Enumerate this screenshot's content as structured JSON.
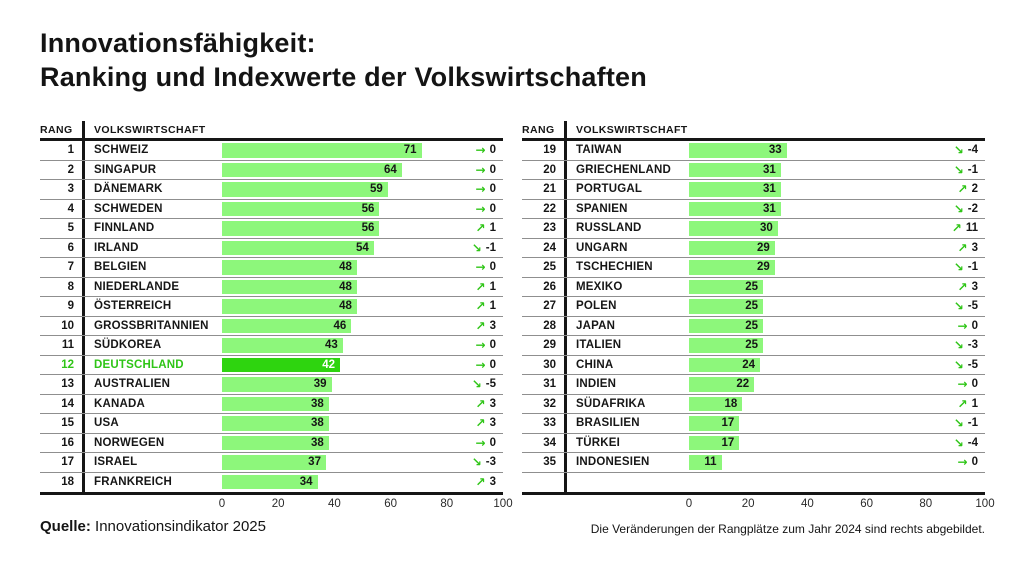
{
  "title": {
    "line1": "Innovationsfähigkeit:",
    "line2": "Ranking und Indexwerte der Volkswirtschaften"
  },
  "table_headers": {
    "rank": "RANG",
    "economy": "VOLKSWIRTSCHAFT"
  },
  "axis": {
    "ticks": [
      0,
      20,
      40,
      60,
      80,
      100
    ],
    "min": 0,
    "max": 100
  },
  "colors": {
    "bar_light": "#8df77b",
    "bar_highlight": "#2ed40f",
    "accent_green": "#2fc517",
    "line_dark": "#161616",
    "separator": "#8f8f8f"
  },
  "footer": {
    "source_label": "Quelle:",
    "source_text": " Innovationsindikator 2025",
    "note": "Die Veränderungen der Rangplätze zum Jahr 2024 sind rechts abgebildet."
  },
  "chart_data": {
    "type": "bar",
    "title": "Innovationsfähigkeit: Ranking und Indexwerte der Volkswirtschaften",
    "xlabel": "",
    "ylabel": "",
    "xlim": [
      0,
      100
    ],
    "ticks": [
      0,
      20,
      40,
      60,
      80,
      100
    ],
    "grid": false,
    "highlighted_country": "DEUTSCHLAND",
    "split_after_rank": 18,
    "rows": [
      {
        "rank": 1,
        "country": "SCHWEIZ",
        "value": 71,
        "change": 0
      },
      {
        "rank": 2,
        "country": "SINGAPUR",
        "value": 64,
        "change": 0
      },
      {
        "rank": 3,
        "country": "DÄNEMARK",
        "value": 59,
        "change": 0
      },
      {
        "rank": 4,
        "country": "SCHWEDEN",
        "value": 56,
        "change": 0
      },
      {
        "rank": 5,
        "country": "FINNLAND",
        "value": 56,
        "change": 1
      },
      {
        "rank": 6,
        "country": "IRLAND",
        "value": 54,
        "change": -1
      },
      {
        "rank": 7,
        "country": "BELGIEN",
        "value": 48,
        "change": 0
      },
      {
        "rank": 8,
        "country": "NIEDERLANDE",
        "value": 48,
        "change": 1
      },
      {
        "rank": 9,
        "country": "ÖSTERREICH",
        "value": 48,
        "change": 1
      },
      {
        "rank": 10,
        "country": "GROSSBRITANNIEN",
        "value": 46,
        "change": 3
      },
      {
        "rank": 11,
        "country": "SÜDKOREA",
        "value": 43,
        "change": 0
      },
      {
        "rank": 12,
        "country": "DEUTSCHLAND",
        "value": 42,
        "change": 0,
        "highlight": true
      },
      {
        "rank": 13,
        "country": "AUSTRALIEN",
        "value": 39,
        "change": -5
      },
      {
        "rank": 14,
        "country": "KANADA",
        "value": 38,
        "change": 3
      },
      {
        "rank": 15,
        "country": "USA",
        "value": 38,
        "change": 3
      },
      {
        "rank": 16,
        "country": "NORWEGEN",
        "value": 38,
        "change": 0
      },
      {
        "rank": 17,
        "country": "ISRAEL",
        "value": 37,
        "change": -3
      },
      {
        "rank": 18,
        "country": "FRANKREICH",
        "value": 34,
        "change": 3
      },
      {
        "rank": 19,
        "country": "TAIWAN",
        "value": 33,
        "change": -4
      },
      {
        "rank": 20,
        "country": "GRIECHENLAND",
        "value": 31,
        "change": -1
      },
      {
        "rank": 21,
        "country": "PORTUGAL",
        "value": 31,
        "change": 2
      },
      {
        "rank": 22,
        "country": "SPANIEN",
        "value": 31,
        "change": -2
      },
      {
        "rank": 23,
        "country": "RUSSLAND",
        "value": 30,
        "change": 11
      },
      {
        "rank": 24,
        "country": "UNGARN",
        "value": 29,
        "change": 3
      },
      {
        "rank": 25,
        "country": "TSCHECHIEN",
        "value": 29,
        "change": -1
      },
      {
        "rank": 26,
        "country": "MEXIKO",
        "value": 25,
        "change": 3
      },
      {
        "rank": 27,
        "country": "POLEN",
        "value": 25,
        "change": -5
      },
      {
        "rank": 28,
        "country": "JAPAN",
        "value": 25,
        "change": 0
      },
      {
        "rank": 29,
        "country": "ITALIEN",
        "value": 25,
        "change": -3
      },
      {
        "rank": 30,
        "country": "CHINA",
        "value": 24,
        "change": -5
      },
      {
        "rank": 31,
        "country": "INDIEN",
        "value": 22,
        "change": 0
      },
      {
        "rank": 32,
        "country": "SÜDAFRIKA",
        "value": 18,
        "change": 1
      },
      {
        "rank": 33,
        "country": "BRASILIEN",
        "value": 17,
        "change": -1
      },
      {
        "rank": 34,
        "country": "TÜRKEI",
        "value": 17,
        "change": -4
      },
      {
        "rank": 35,
        "country": "INDONESIEN",
        "value": 11,
        "change": 0
      }
    ]
  }
}
